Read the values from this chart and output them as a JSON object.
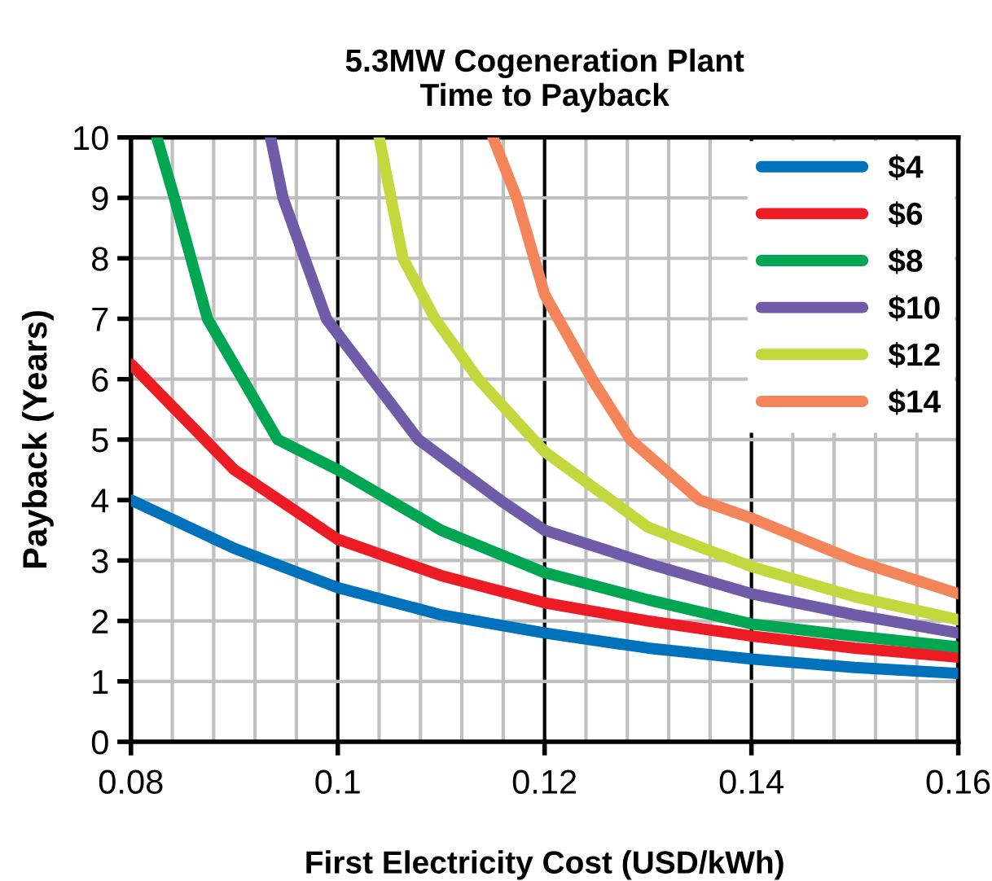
{
  "chart_data": {
    "type": "line",
    "title": "5.3MW Cogeneration Plant\nTime to Payback",
    "xlabel": "First Electricity Cost (USD/kWh)",
    "ylabel": "Payback (Years)",
    "xlim": [
      0.08,
      0.16
    ],
    "ylim": [
      0,
      10
    ],
    "xticks": [
      {
        "value": 0.08,
        "label": "0.08"
      },
      {
        "value": 0.084,
        "label": null
      },
      {
        "value": 0.088,
        "label": null
      },
      {
        "value": 0.092,
        "label": null
      },
      {
        "value": 0.096,
        "label": null
      },
      {
        "value": 0.1,
        "label": "0.1"
      },
      {
        "value": 0.104,
        "label": null
      },
      {
        "value": 0.108,
        "label": null
      },
      {
        "value": 0.112,
        "label": null
      },
      {
        "value": 0.116,
        "label": null
      },
      {
        "value": 0.12,
        "label": "0.12"
      },
      {
        "value": 0.124,
        "label": null
      },
      {
        "value": 0.128,
        "label": null
      },
      {
        "value": 0.132,
        "label": null
      },
      {
        "value": 0.136,
        "label": null
      },
      {
        "value": 0.14,
        "label": "0.14"
      },
      {
        "value": 0.144,
        "label": null
      },
      {
        "value": 0.148,
        "label": null
      },
      {
        "value": 0.152,
        "label": null
      },
      {
        "value": 0.156,
        "label": null
      },
      {
        "value": 0.16,
        "label": "0.16"
      }
    ],
    "yticks": [
      0,
      1,
      2,
      3,
      4,
      5,
      6,
      7,
      8,
      9,
      10
    ],
    "grid": true,
    "legend": "top right",
    "marker": "none",
    "line_style": "solid",
    "series": [
      {
        "name": "$4",
        "color": "#0072bc",
        "x": [
          0.08,
          0.09,
          0.1,
          0.11,
          0.12,
          0.13,
          0.14,
          0.15,
          0.16
        ],
        "values": [
          4.0,
          3.2,
          2.55,
          2.1,
          1.8,
          1.55,
          1.37,
          1.23,
          1.13
        ]
      },
      {
        "name": "$6",
        "color": "#ed1c24",
        "x": [
          0.08,
          0.09,
          0.1,
          0.11,
          0.12,
          0.13,
          0.14,
          0.15,
          0.16
        ],
        "values": [
          6.25,
          4.5,
          3.35,
          2.75,
          2.3,
          2.0,
          1.75,
          1.55,
          1.4
        ]
      },
      {
        "name": "$8",
        "color": "#00a651",
        "x": [
          0.0825,
          0.0842,
          0.0874,
          0.0942,
          0.1,
          0.11,
          0.12,
          0.13,
          0.14,
          0.15,
          0.16
        ],
        "values": [
          10,
          9,
          7,
          5,
          4.5,
          3.5,
          2.8,
          2.35,
          1.95,
          1.75,
          1.57
        ]
      },
      {
        "name": "$10",
        "color": "#6f5ba7",
        "x": [
          0.0935,
          0.0947,
          0.0989,
          0.1,
          0.1078,
          0.1157,
          0.12,
          0.13,
          0.14,
          0.15,
          0.16
        ],
        "values": [
          10,
          9,
          7,
          6.75,
          5,
          4,
          3.5,
          2.95,
          2.45,
          2.1,
          1.8
        ]
      },
      {
        "name": "$12",
        "color": "#c4d83e",
        "x": [
          0.104,
          0.1063,
          0.1094,
          0.1136,
          0.12,
          0.13,
          0.14,
          0.15,
          0.16
        ],
        "values": [
          10,
          8,
          7,
          6,
          4.8,
          3.55,
          2.9,
          2.4,
          2.02
        ]
      },
      {
        "name": "$14",
        "color": "#f4845a",
        "x": [
          0.115,
          0.1173,
          0.12,
          0.1246,
          0.1283,
          0.135,
          0.14,
          0.15,
          0.16
        ],
        "values": [
          10,
          9,
          7.4,
          6,
          5,
          4,
          3.7,
          3.0,
          2.45
        ]
      }
    ]
  }
}
